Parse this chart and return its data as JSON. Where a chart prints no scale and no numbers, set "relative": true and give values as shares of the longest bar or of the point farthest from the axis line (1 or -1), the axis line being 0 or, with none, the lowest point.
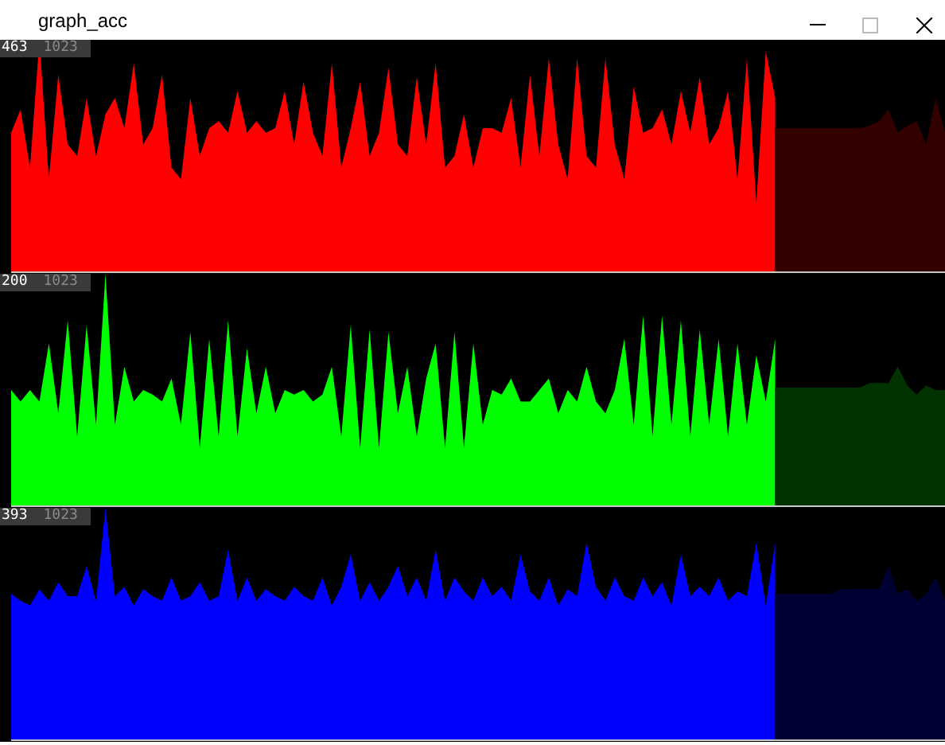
{
  "chart_data": [
    {
      "type": "area",
      "title": "graph_acc",
      "relative": true,
      "annotations": [
        "463",
        "1023"
      ],
      "categories": [
        null,
        null,
        null,
        null,
        null,
        null,
        null,
        null,
        null,
        null,
        null,
        null,
        null,
        null,
        null,
        null,
        null,
        null,
        null,
        null,
        null,
        null,
        null,
        null,
        null,
        null,
        null,
        null,
        null,
        null,
        null,
        null,
        null,
        null,
        null,
        null,
        null,
        null,
        null,
        null,
        null,
        null,
        null,
        null,
        null,
        null,
        null,
        null,
        null,
        null,
        null,
        null,
        null,
        null,
        null,
        null,
        null,
        null,
        null,
        null,
        null,
        null,
        null,
        null,
        null,
        null,
        null,
        null,
        null,
        null,
        null,
        null,
        null,
        null,
        null,
        null,
        null,
        null,
        null,
        null,
        null,
        null,
        null,
        null,
        null,
        null,
        null,
        null,
        null,
        null,
        null,
        null,
        null,
        null,
        null,
        null,
        null,
        null,
        null,
        null
      ],
      "series": [
        {
          "color": "#ff0000",
          "values": [
            0.6,
            0.7,
            0.45,
            1.0,
            0.4,
            0.85,
            0.55,
            0.5,
            0.75,
            0.5,
            0.68,
            0.75,
            0.62,
            0.9,
            0.55,
            0.62,
            0.85,
            0.45,
            0.4,
            0.75,
            0.5,
            0.62,
            0.65,
            0.6,
            0.78,
            0.6,
            0.65,
            0.6,
            0.62,
            0.78,
            0.55,
            0.82,
            0.6,
            0.5,
            0.9,
            0.45,
            0.62,
            0.82,
            0.5,
            0.6,
            0.88,
            0.55,
            0.5,
            0.84,
            0.55,
            0.9,
            0.45,
            0.5,
            0.68,
            0.45,
            0.62,
            0.62,
            0.6,
            0.75,
            0.45,
            0.85,
            0.5,
            0.92,
            0.55,
            0.4,
            0.92,
            0.5,
            0.45,
            0.92,
            0.55,
            0.4,
            0.8,
            0.6,
            0.62,
            0.7,
            0.55,
            0.78,
            0.6,
            0.84,
            0.55,
            0.62,
            0.78,
            0.4,
            0.92,
            0.3,
            0.95,
            0.75,
            null,
            null,
            null,
            null,
            null,
            null,
            null,
            null,
            null,
            null,
            null,
            null,
            null,
            null,
            null,
            null,
            null,
            null
          ]
        },
        {
          "color": "#330000",
          "values": [
            null,
            null,
            null,
            null,
            null,
            null,
            null,
            null,
            null,
            null,
            null,
            null,
            null,
            null,
            null,
            null,
            null,
            null,
            null,
            null,
            null,
            null,
            null,
            null,
            null,
            null,
            null,
            null,
            null,
            null,
            null,
            null,
            null,
            null,
            null,
            null,
            null,
            null,
            null,
            null,
            null,
            null,
            null,
            null,
            null,
            null,
            null,
            null,
            null,
            null,
            null,
            null,
            null,
            null,
            null,
            null,
            null,
            null,
            null,
            null,
            null,
            null,
            null,
            null,
            null,
            null,
            null,
            null,
            null,
            null,
            null,
            null,
            null,
            null,
            null,
            null,
            null,
            null,
            null,
            null,
            null,
            0.62,
            0.62,
            0.62,
            0.62,
            0.62,
            0.62,
            0.62,
            0.62,
            0.62,
            0.62,
            0.63,
            0.65,
            0.7,
            0.6,
            0.63,
            0.65,
            0.55,
            0.75,
            0.6
          ]
        }
      ]
    },
    {
      "type": "area",
      "relative": true,
      "annotations": [
        "200",
        "1023"
      ],
      "categories": [
        null,
        null,
        null,
        null,
        null,
        null,
        null,
        null,
        null,
        null,
        null,
        null,
        null,
        null,
        null,
        null,
        null,
        null,
        null,
        null,
        null,
        null,
        null,
        null,
        null,
        null,
        null,
        null,
        null,
        null,
        null,
        null,
        null,
        null,
        null,
        null,
        null,
        null,
        null,
        null,
        null,
        null,
        null,
        null,
        null,
        null,
        null,
        null,
        null,
        null,
        null,
        null,
        null,
        null,
        null,
        null,
        null,
        null,
        null,
        null,
        null,
        null,
        null,
        null,
        null,
        null,
        null,
        null,
        null,
        null,
        null,
        null,
        null,
        null,
        null,
        null,
        null,
        null,
        null,
        null,
        null,
        null,
        null,
        null,
        null,
        null,
        null,
        null,
        null,
        null,
        null,
        null,
        null,
        null,
        null,
        null,
        null,
        null,
        null,
        null
      ],
      "series": [
        {
          "color": "#00ff00",
          "values": [
            0.5,
            0.45,
            0.5,
            0.45,
            0.7,
            0.4,
            0.8,
            0.3,
            0.78,
            0.35,
            1.0,
            0.35,
            0.6,
            0.45,
            0.5,
            0.48,
            0.45,
            0.55,
            0.35,
            0.75,
            0.25,
            0.72,
            0.3,
            0.8,
            0.3,
            0.68,
            0.4,
            0.6,
            0.4,
            0.5,
            0.48,
            0.5,
            0.45,
            0.48,
            0.6,
            0.3,
            0.78,
            0.25,
            0.76,
            0.25,
            0.75,
            0.4,
            0.6,
            0.3,
            0.55,
            0.7,
            0.25,
            0.75,
            0.25,
            0.7,
            0.35,
            0.5,
            0.48,
            0.55,
            0.45,
            0.45,
            0.5,
            0.55,
            0.4,
            0.5,
            0.45,
            0.6,
            0.45,
            0.4,
            0.5,
            0.72,
            0.35,
            0.82,
            0.3,
            0.82,
            0.35,
            0.8,
            0.3,
            0.76,
            0.35,
            0.72,
            0.3,
            0.7,
            0.35,
            0.65,
            0.45,
            0.72,
            null,
            null,
            null,
            null,
            null,
            null,
            null,
            null,
            null,
            null,
            null,
            null,
            null,
            null,
            null,
            null,
            null,
            null
          ]
        },
        {
          "color": "#003300",
          "values": [
            null,
            null,
            null,
            null,
            null,
            null,
            null,
            null,
            null,
            null,
            null,
            null,
            null,
            null,
            null,
            null,
            null,
            null,
            null,
            null,
            null,
            null,
            null,
            null,
            null,
            null,
            null,
            null,
            null,
            null,
            null,
            null,
            null,
            null,
            null,
            null,
            null,
            null,
            null,
            null,
            null,
            null,
            null,
            null,
            null,
            null,
            null,
            null,
            null,
            null,
            null,
            null,
            null,
            null,
            null,
            null,
            null,
            null,
            null,
            null,
            null,
            null,
            null,
            null,
            null,
            null,
            null,
            null,
            null,
            null,
            null,
            null,
            null,
            null,
            null,
            null,
            null,
            null,
            null,
            null,
            null,
            0.51,
            0.51,
            0.51,
            0.51,
            0.51,
            0.51,
            0.51,
            0.51,
            0.51,
            0.51,
            0.53,
            0.53,
            0.53,
            0.6,
            0.52,
            0.48,
            0.52,
            0.5,
            0.5
          ]
        }
      ]
    },
    {
      "type": "area",
      "relative": true,
      "annotations": [
        "393",
        "1023"
      ],
      "categories": [
        null,
        null,
        null,
        null,
        null,
        null,
        null,
        null,
        null,
        null,
        null,
        null,
        null,
        null,
        null,
        null,
        null,
        null,
        null,
        null,
        null,
        null,
        null,
        null,
        null,
        null,
        null,
        null,
        null,
        null,
        null,
        null,
        null,
        null,
        null,
        null,
        null,
        null,
        null,
        null,
        null,
        null,
        null,
        null,
        null,
        null,
        null,
        null,
        null,
        null,
        null,
        null,
        null,
        null,
        null,
        null,
        null,
        null,
        null,
        null,
        null,
        null,
        null,
        null,
        null,
        null,
        null,
        null,
        null,
        null,
        null,
        null,
        null,
        null,
        null,
        null,
        null,
        null,
        null,
        null,
        null,
        null,
        null,
        null,
        null,
        null,
        null,
        null,
        null,
        null,
        null,
        null,
        null,
        null,
        null,
        null,
        null,
        null,
        null,
        null
      ],
      "series": [
        {
          "color": "#0000ff",
          "values": [
            0.63,
            0.6,
            0.58,
            0.65,
            0.6,
            0.68,
            0.62,
            0.62,
            0.75,
            0.6,
            1.0,
            0.62,
            0.66,
            0.58,
            0.65,
            0.62,
            0.6,
            0.7,
            0.6,
            0.62,
            0.68,
            0.6,
            0.62,
            0.82,
            0.6,
            0.7,
            0.6,
            0.65,
            0.62,
            0.6,
            0.66,
            0.62,
            0.6,
            0.7,
            0.58,
            0.66,
            0.8,
            0.6,
            0.68,
            0.6,
            0.66,
            0.75,
            0.62,
            0.7,
            0.6,
            0.82,
            0.6,
            0.7,
            0.64,
            0.6,
            0.7,
            0.62,
            0.66,
            0.6,
            0.8,
            0.64,
            0.6,
            0.7,
            0.58,
            0.65,
            0.62,
            0.85,
            0.66,
            0.6,
            0.7,
            0.62,
            0.6,
            0.7,
            0.62,
            0.68,
            0.58,
            0.8,
            0.62,
            0.66,
            0.62,
            0.7,
            0.6,
            0.64,
            0.62,
            0.85,
            0.58,
            0.85,
            null,
            null,
            null,
            null,
            null,
            null,
            null,
            null,
            null,
            null,
            null,
            null,
            null,
            null,
            null,
            null,
            null,
            null
          ]
        },
        {
          "color": "#000033",
          "values": [
            null,
            null,
            null,
            null,
            null,
            null,
            null,
            null,
            null,
            null,
            null,
            null,
            null,
            null,
            null,
            null,
            null,
            null,
            null,
            null,
            null,
            null,
            null,
            null,
            null,
            null,
            null,
            null,
            null,
            null,
            null,
            null,
            null,
            null,
            null,
            null,
            null,
            null,
            null,
            null,
            null,
            null,
            null,
            null,
            null,
            null,
            null,
            null,
            null,
            null,
            null,
            null,
            null,
            null,
            null,
            null,
            null,
            null,
            null,
            null,
            null,
            null,
            null,
            null,
            null,
            null,
            null,
            null,
            null,
            null,
            null,
            null,
            null,
            null,
            null,
            null,
            null,
            null,
            null,
            null,
            null,
            0.63,
            0.63,
            0.63,
            0.63,
            0.63,
            0.63,
            0.63,
            0.65,
            0.65,
            0.65,
            0.65,
            0.65,
            0.75,
            0.63,
            0.65,
            0.6,
            0.63,
            0.7,
            0.6
          ]
        }
      ]
    }
  ]
}
